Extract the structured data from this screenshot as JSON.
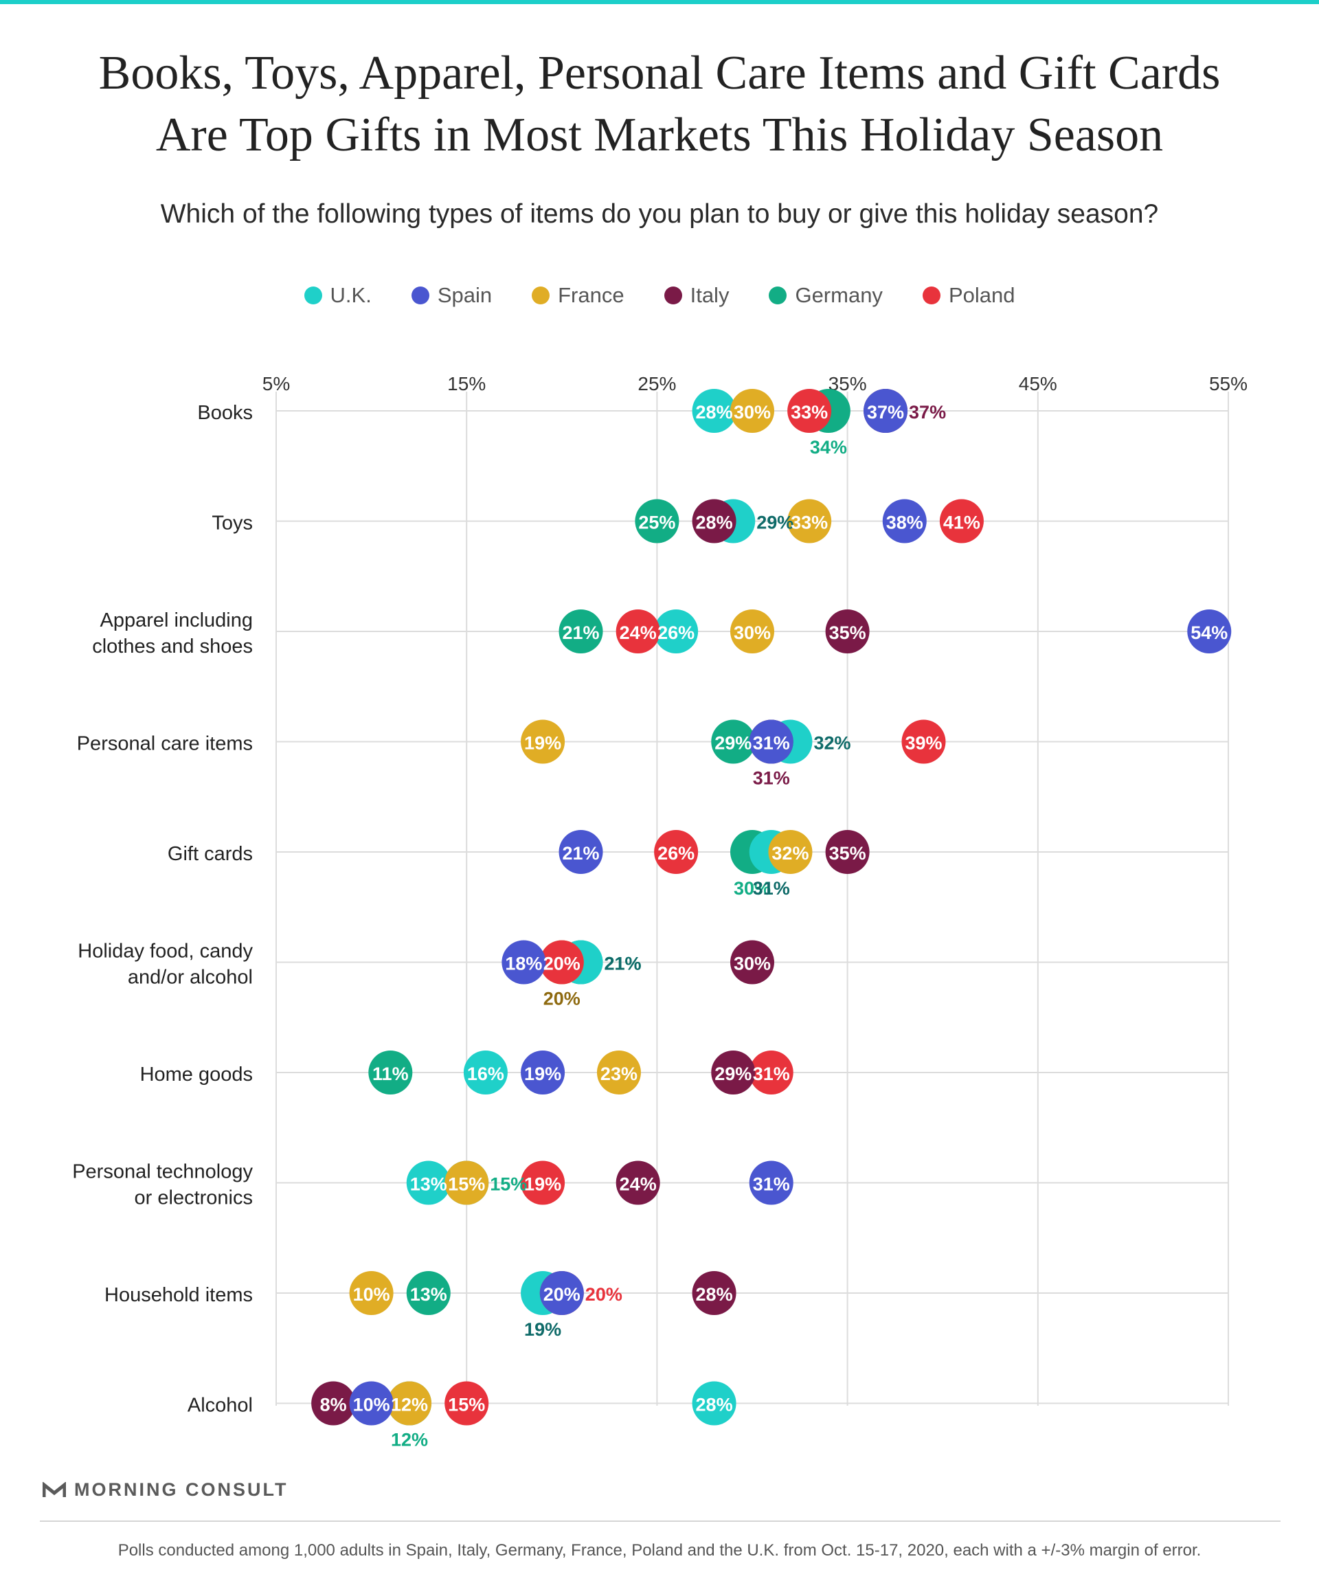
{
  "title_lines": [
    "Books, Toys, Apparel, Personal Care Items and Gift Cards",
    "Are Top Gifts in Most Markets This Holiday Season"
  ],
  "subtitle": "Which of the following types of items do you plan to buy or give this holiday season?",
  "brand": "MORNING CONSULT",
  "footnote": "Polls conducted among 1,000 adults in Spain, Italy, Germany, France, Poland and the U.K. from Oct. 15-17, 2020, each with a +/-3% margin of error.",
  "chart_data": {
    "type": "scatter",
    "xlim": [
      5,
      55
    ],
    "x_ticks": [
      "5%",
      "15%",
      "25%",
      "35%",
      "45%",
      "55%"
    ],
    "grid": true,
    "legend_position": "top-center",
    "categories": [
      "Books",
      "Toys",
      "Apparel including clothes and shoes",
      "Personal care items",
      "Gift cards",
      "Holiday food, candy and/or alcohol",
      "Home goods",
      "Personal technology or electronics",
      "Household items",
      "Alcohol"
    ],
    "category_lines": [
      [
        "Books"
      ],
      [
        "Toys"
      ],
      [
        "Apparel including",
        "clothes and shoes"
      ],
      [
        "Personal care items"
      ],
      [
        "Gift cards"
      ],
      [
        "Holiday food, candy",
        "and/or alcohol"
      ],
      [
        "Home goods"
      ],
      [
        "Personal technology",
        "or electronics"
      ],
      [
        "Household items"
      ],
      [
        "Alcohol"
      ]
    ],
    "series": [
      {
        "name": "U.K.",
        "color": "#1fd0c9",
        "label_color": "#0e6a68",
        "values": [
          28,
          29,
          26,
          32,
          31,
          21,
          16,
          13,
          19,
          28
        ]
      },
      {
        "name": "Spain",
        "color": "#4a56d0",
        "label_color": "#4a56d0",
        "values": [
          37,
          38,
          54,
          31,
          21,
          18,
          19,
          31,
          20,
          10
        ]
      },
      {
        "name": "France",
        "color": "#e0ad25",
        "label_color": "#8e6a10",
        "values": [
          30,
          33,
          30,
          19,
          32,
          20,
          23,
          15,
          10,
          12
        ]
      },
      {
        "name": "Italy",
        "color": "#7a1a47",
        "label_color": "#7a1a47",
        "values": [
          37,
          28,
          35,
          31,
          35,
          30,
          29,
          24,
          28,
          8
        ]
      },
      {
        "name": "Germany",
        "color": "#12ad85",
        "label_color": "#12ad85",
        "values": [
          34,
          25,
          21,
          29,
          30,
          21,
          11,
          15,
          13,
          12
        ]
      },
      {
        "name": "Poland",
        "color": "#e8333c",
        "label_color": "#e8333c",
        "values": [
          33,
          41,
          24,
          39,
          26,
          20,
          31,
          19,
          20,
          15
        ]
      }
    ]
  }
}
